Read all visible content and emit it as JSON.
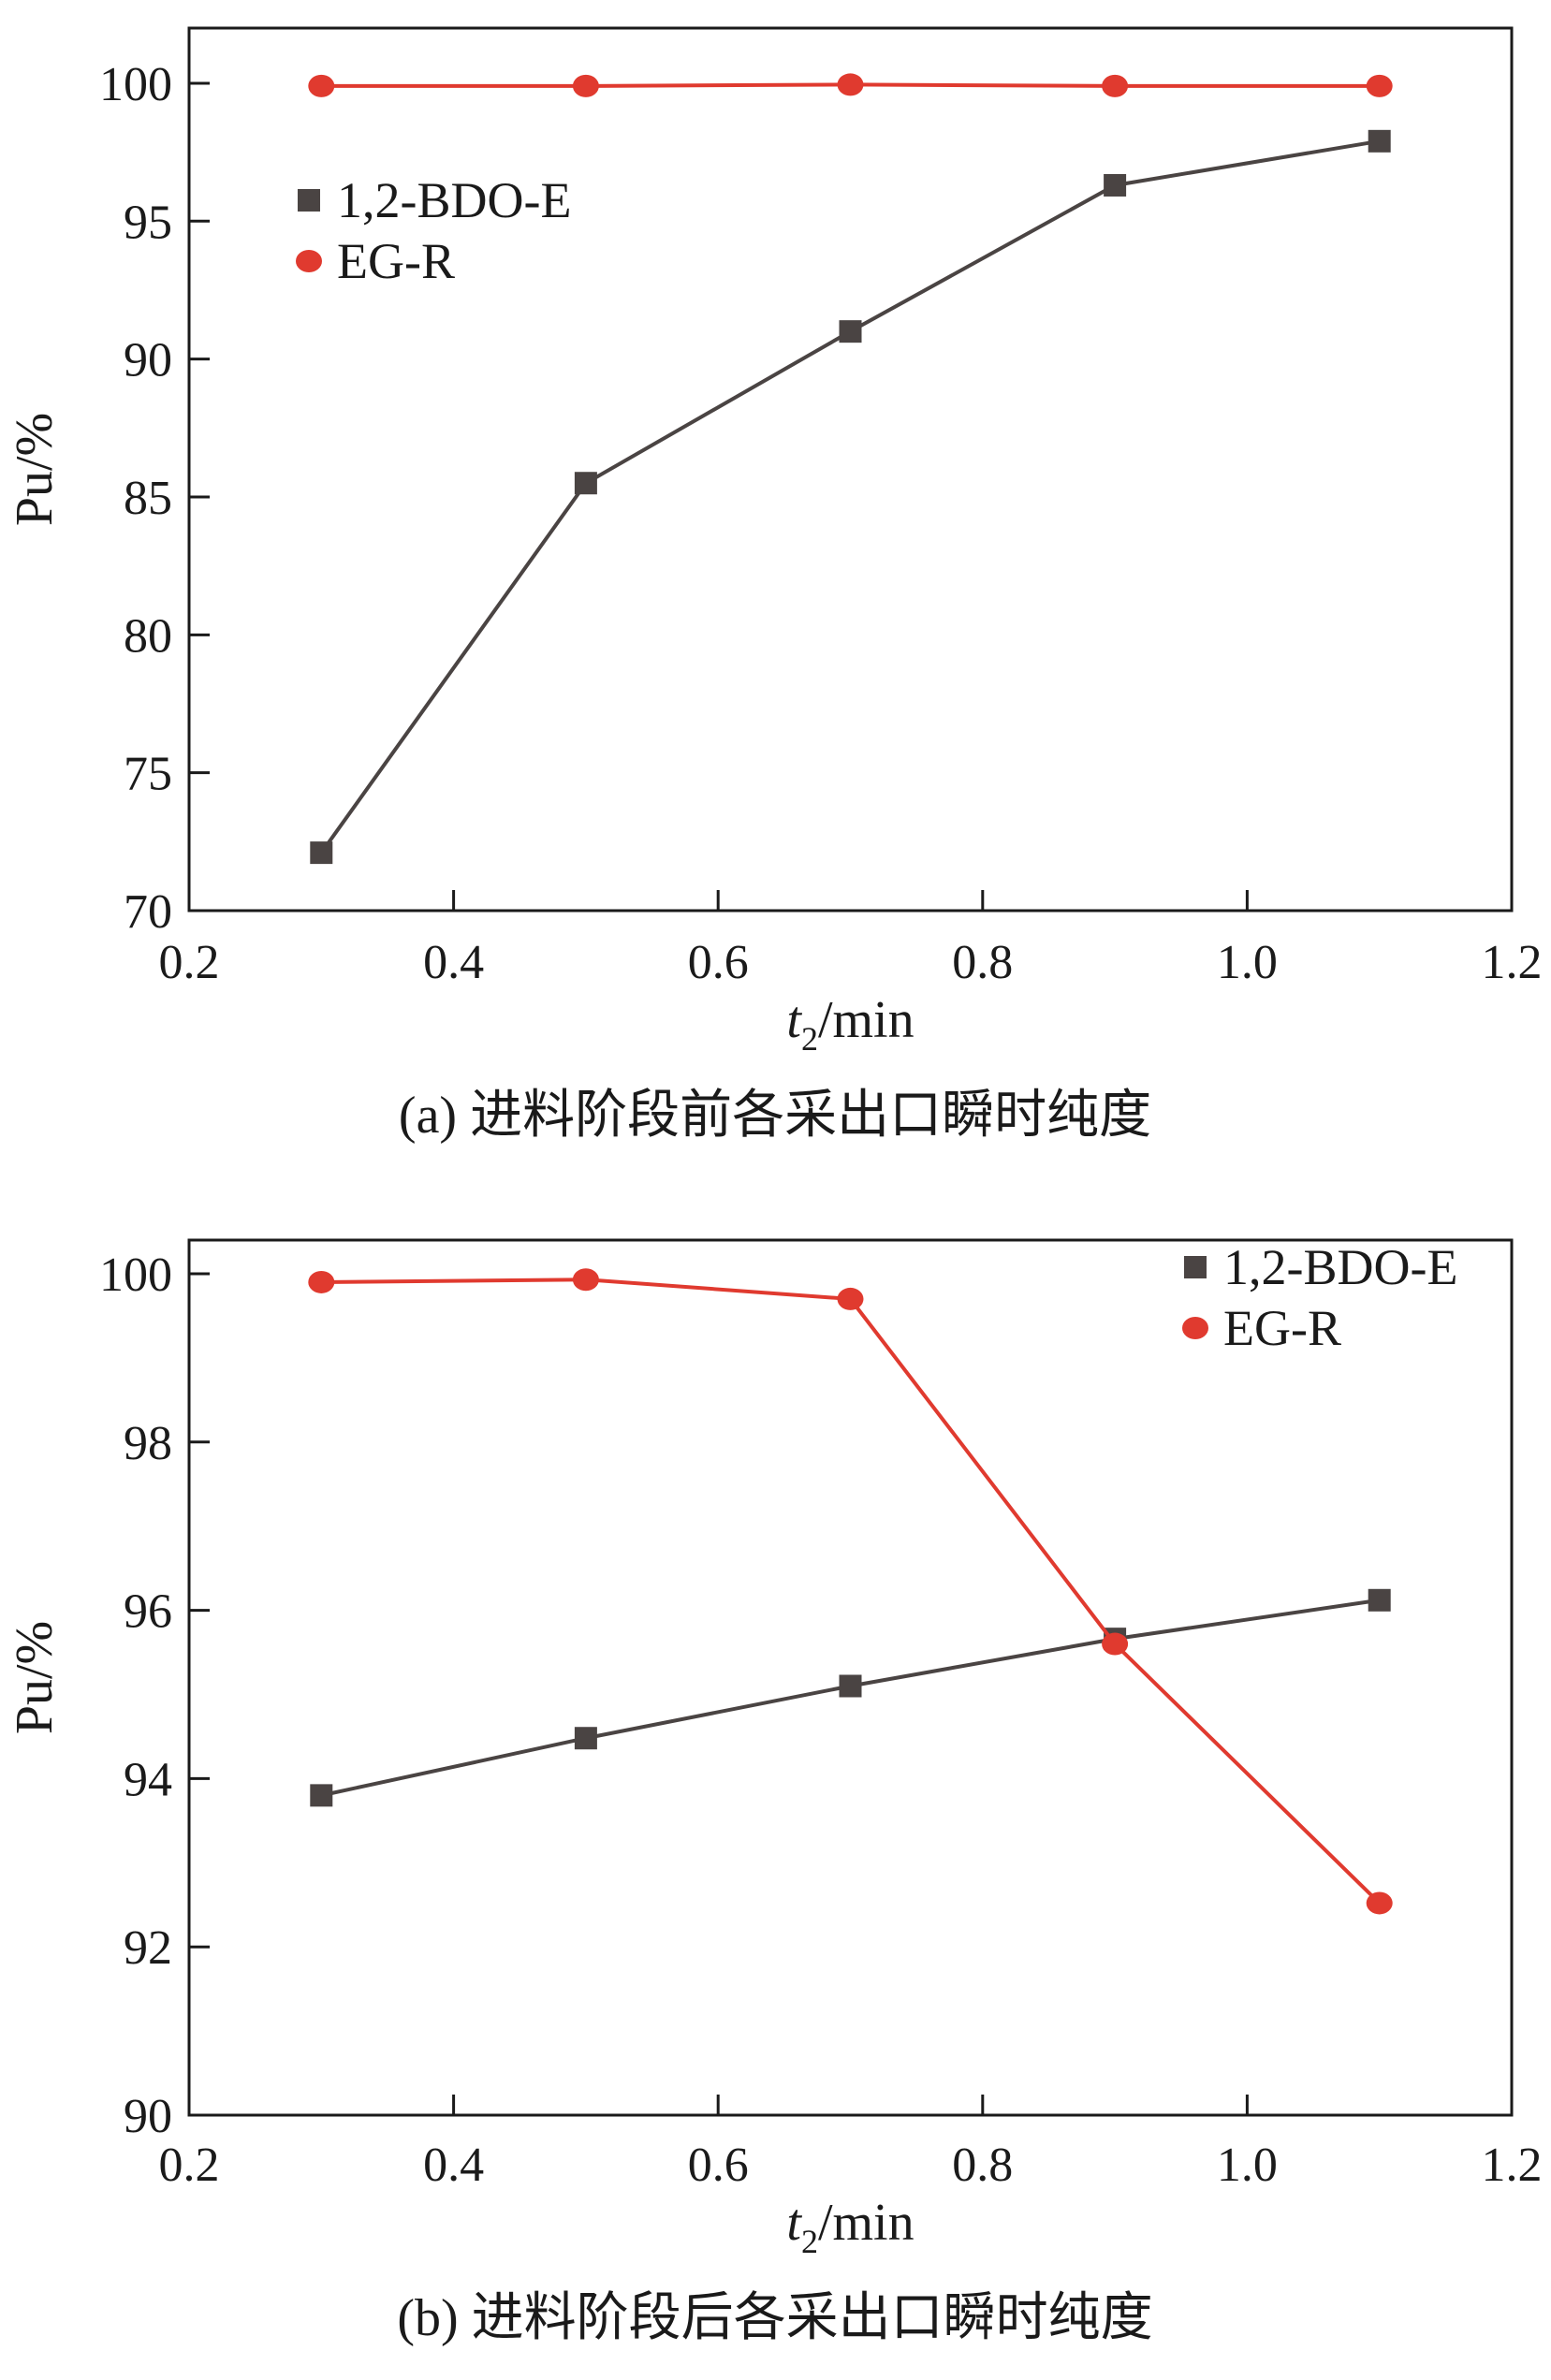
{
  "chart_data": [
    {
      "type": "line",
      "caption": "(a) 进料阶段前各采出口瞬时纯度",
      "xlabel_main": "t",
      "xlabel_sub": "2",
      "xlabel_rest": "/min",
      "ylabel": "Pu/%",
      "xlim": [
        0.2,
        1.2
      ],
      "ylim": [
        70,
        102
      ],
      "xticks": [
        0.2,
        0.4,
        0.6,
        0.8,
        1.0,
        1.2
      ],
      "xtick_labels": [
        "0.2",
        "0.4",
        "0.6",
        "0.8",
        "1.0",
        "1.2"
      ],
      "yticks": [
        70,
        75,
        80,
        85,
        90,
        95,
        100
      ],
      "ytick_labels": [
        "70",
        "75",
        "80",
        "85",
        "90",
        "95",
        "100"
      ],
      "legend_position": "top-left",
      "grid": false,
      "series": [
        {
          "name": "1,2-BDO-E",
          "marker": "square",
          "color": "#4a4443",
          "x": [
            0.3,
            0.5,
            0.7,
            0.9,
            1.1
          ],
          "y": [
            72.1,
            85.5,
            91.0,
            96.3,
            97.9
          ]
        },
        {
          "name": "EG-R",
          "marker": "circle",
          "color": "#e03a2f",
          "x": [
            0.3,
            0.5,
            0.7,
            0.9,
            1.1
          ],
          "y": [
            99.9,
            99.9,
            99.95,
            99.9,
            99.9
          ]
        }
      ]
    },
    {
      "type": "line",
      "caption": "(b) 进料阶段后各采出口瞬时纯度",
      "xlabel_main": "t",
      "xlabel_sub": "2",
      "xlabel_rest": "/min",
      "ylabel": "Pu/%",
      "xlim": [
        0.2,
        1.2
      ],
      "ylim": [
        90,
        100.4
      ],
      "xticks": [
        0.2,
        0.4,
        0.6,
        0.8,
        1.0,
        1.2
      ],
      "xtick_labels": [
        "0.2",
        "0.4",
        "0.6",
        "0.8",
        "1.0",
        "1.2"
      ],
      "yticks": [
        90,
        92,
        94,
        96,
        98,
        100
      ],
      "ytick_labels": [
        "90",
        "92",
        "94",
        "96",
        "98",
        "100"
      ],
      "legend_position": "top-right",
      "grid": false,
      "series": [
        {
          "name": "1,2-BDO-E",
          "marker": "square",
          "color": "#4a4443",
          "x": [
            0.3,
            0.5,
            0.7,
            0.9,
            1.1
          ],
          "y": [
            93.8,
            94.48,
            95.1,
            95.66,
            96.12
          ]
        },
        {
          "name": "EG-R",
          "marker": "circle",
          "color": "#e03a2f",
          "x": [
            0.3,
            0.5,
            0.7,
            0.9,
            1.1
          ],
          "y": [
            99.9,
            99.93,
            99.7,
            95.6,
            92.52
          ]
        }
      ]
    }
  ]
}
